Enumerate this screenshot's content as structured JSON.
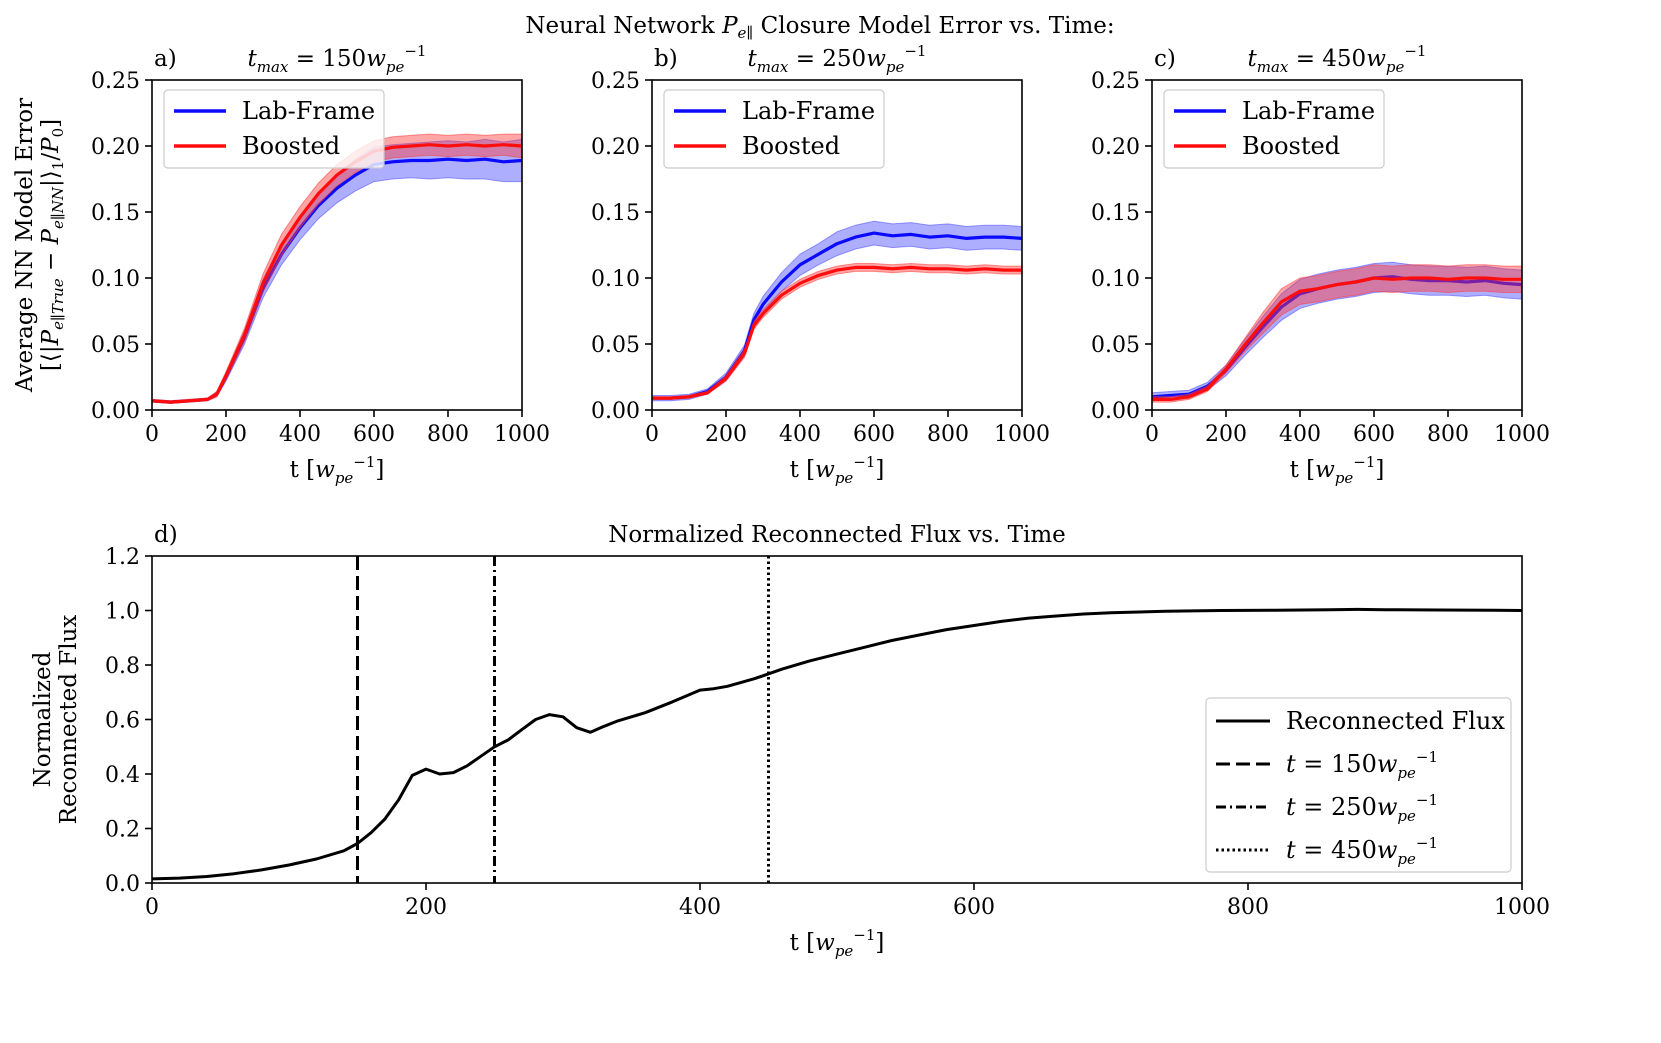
{
  "figure_title": "Neural Network P_e∥ Closure Model Error vs. Time:",
  "figure_title_parts": {
    "before": "Neural Network ",
    "symbol": "P",
    "symbol_sub": "e∥",
    "after": " Closure Model Error vs. Time:"
  },
  "shared_y_label": {
    "line1": "Average NN Model Error",
    "line2": "[⟨|P_e∥True − P_e∥NN|⟩₁/P₀]",
    "line2_parts": {
      "open": "[⟨|",
      "p1": "P",
      "p1_sub": "e∥True",
      "minus": " − ",
      "p2": "P",
      "p2_sub": "e∥NN",
      "mid": "|⟩",
      "mid_sub": "1",
      "div": "/",
      "p0": "P",
      "p0_sub": "0",
      "close": "]"
    }
  },
  "colors": {
    "lab_frame": "#0a0aff",
    "lab_frame_band": "#4b4bff",
    "boosted": "#ff0d0d",
    "boosted_band": "#ff3a3a",
    "flux": "#000000"
  },
  "chart_data": [
    {
      "panel_label": "a)",
      "type": "line",
      "title": "t_max = 150w_pe^-1",
      "title_parts": {
        "var": "t",
        "sub": "max",
        "eq": " = 150",
        "w": "w",
        "w_sub": "pe",
        "w_sup": "−1"
      },
      "xlabel": "t [w_pe^-1]",
      "xlabel_parts": {
        "pre": "t [",
        "w": "w",
        "w_sub": "pe",
        "w_sup": "−1",
        "post": "]"
      },
      "xlim": [
        0,
        1000
      ],
      "ylim": [
        0,
        0.25
      ],
      "xticks": [
        "0",
        "200",
        "400",
        "600",
        "800",
        "1000"
      ],
      "yticks": [
        "0.00",
        "0.05",
        "0.10",
        "0.15",
        "0.20",
        "0.25"
      ],
      "legend": {
        "placement": "top-left",
        "entries": [
          "Lab-Frame",
          "Boosted"
        ]
      },
      "series": [
        {
          "name": "Lab-Frame",
          "x": [
            0,
            50,
            100,
            150,
            175,
            200,
            250,
            300,
            350,
            400,
            450,
            500,
            550,
            600,
            650,
            700,
            750,
            800,
            850,
            900,
            950,
            1000
          ],
          "y": [
            0.007,
            0.006,
            0.007,
            0.008,
            0.012,
            0.025,
            0.055,
            0.092,
            0.118,
            0.138,
            0.155,
            0.168,
            0.178,
            0.186,
            0.188,
            0.189,
            0.189,
            0.19,
            0.189,
            0.19,
            0.188,
            0.189
          ],
          "band": [
            0.001,
            0.001,
            0.001,
            0.001,
            0.002,
            0.003,
            0.005,
            0.007,
            0.008,
            0.009,
            0.01,
            0.011,
            0.012,
            0.013,
            0.013,
            0.013,
            0.014,
            0.014,
            0.014,
            0.015,
            0.015,
            0.016
          ]
        },
        {
          "name": "Boosted",
          "x": [
            0,
            50,
            100,
            150,
            175,
            200,
            250,
            300,
            350,
            400,
            450,
            500,
            550,
            600,
            650,
            700,
            750,
            800,
            850,
            900,
            950,
            1000
          ],
          "y": [
            0.007,
            0.006,
            0.007,
            0.008,
            0.012,
            0.026,
            0.057,
            0.096,
            0.125,
            0.146,
            0.164,
            0.178,
            0.188,
            0.196,
            0.199,
            0.2,
            0.201,
            0.2,
            0.201,
            0.2,
            0.201,
            0.2
          ],
          "band": [
            0.001,
            0.001,
            0.001,
            0.001,
            0.002,
            0.003,
            0.005,
            0.007,
            0.008,
            0.008,
            0.008,
            0.008,
            0.008,
            0.008,
            0.008,
            0.008,
            0.008,
            0.008,
            0.008,
            0.008,
            0.008,
            0.009
          ]
        }
      ]
    },
    {
      "panel_label": "b)",
      "type": "line",
      "title": "t_max = 250w_pe^-1",
      "title_parts": {
        "var": "t",
        "sub": "max",
        "eq": " = 250",
        "w": "w",
        "w_sub": "pe",
        "w_sup": "−1"
      },
      "xlabel": "t [w_pe^-1]",
      "xlabel_parts": {
        "pre": "t [",
        "w": "w",
        "w_sub": "pe",
        "w_sup": "−1",
        "post": "]"
      },
      "xlim": [
        0,
        1000
      ],
      "ylim": [
        0,
        0.25
      ],
      "xticks": [
        "0",
        "200",
        "400",
        "600",
        "800",
        "1000"
      ],
      "yticks": [
        "0.00",
        "0.05",
        "0.10",
        "0.15",
        "0.20",
        "0.25"
      ],
      "legend": {
        "placement": "top-left",
        "entries": [
          "Lab-Frame",
          "Boosted"
        ]
      },
      "series": [
        {
          "name": "Lab-Frame",
          "x": [
            0,
            50,
            100,
            150,
            200,
            250,
            275,
            300,
            350,
            400,
            450,
            500,
            550,
            600,
            650,
            700,
            750,
            800,
            850,
            900,
            950,
            1000
          ],
          "y": [
            0.009,
            0.009,
            0.01,
            0.014,
            0.025,
            0.045,
            0.068,
            0.08,
            0.097,
            0.11,
            0.118,
            0.126,
            0.131,
            0.134,
            0.132,
            0.133,
            0.131,
            0.132,
            0.13,
            0.131,
            0.131,
            0.13
          ],
          "band": [
            0.002,
            0.002,
            0.002,
            0.002,
            0.003,
            0.004,
            0.005,
            0.006,
            0.007,
            0.008,
            0.008,
            0.009,
            0.009,
            0.009,
            0.009,
            0.009,
            0.009,
            0.009,
            0.009,
            0.009,
            0.009,
            0.009
          ]
        },
        {
          "name": "Boosted",
          "x": [
            0,
            50,
            100,
            150,
            200,
            250,
            275,
            300,
            350,
            400,
            450,
            500,
            550,
            600,
            650,
            700,
            750,
            800,
            850,
            900,
            950,
            1000
          ],
          "y": [
            0.009,
            0.009,
            0.01,
            0.013,
            0.024,
            0.043,
            0.064,
            0.073,
            0.087,
            0.096,
            0.102,
            0.106,
            0.108,
            0.108,
            0.107,
            0.108,
            0.107,
            0.107,
            0.106,
            0.107,
            0.106,
            0.106
          ],
          "band": [
            0.001,
            0.001,
            0.001,
            0.001,
            0.002,
            0.003,
            0.003,
            0.003,
            0.003,
            0.003,
            0.003,
            0.003,
            0.003,
            0.003,
            0.003,
            0.003,
            0.003,
            0.003,
            0.003,
            0.003,
            0.003,
            0.003
          ]
        }
      ]
    },
    {
      "panel_label": "c)",
      "type": "line",
      "title": "t_max = 450w_pe^-1",
      "title_parts": {
        "var": "t",
        "sub": "max",
        "eq": " = 450",
        "w": "w",
        "w_sub": "pe",
        "w_sup": "−1"
      },
      "xlabel": "t [w_pe^-1]",
      "xlabel_parts": {
        "pre": "t [",
        "w": "w",
        "w_sub": "pe",
        "w_sup": "−1",
        "post": "]"
      },
      "xlim": [
        0,
        1000
      ],
      "ylim": [
        0,
        0.25
      ],
      "xticks": [
        "0",
        "200",
        "400",
        "600",
        "800",
        "1000"
      ],
      "yticks": [
        "0.00",
        "0.05",
        "0.10",
        "0.15",
        "0.20",
        "0.25"
      ],
      "legend": {
        "placement": "top-left",
        "entries": [
          "Lab-Frame",
          "Boosted"
        ]
      },
      "series": [
        {
          "name": "Lab-Frame",
          "x": [
            0,
            50,
            100,
            150,
            200,
            250,
            300,
            350,
            400,
            450,
            500,
            550,
            600,
            650,
            700,
            750,
            800,
            850,
            900,
            950,
            1000
          ],
          "y": [
            0.01,
            0.011,
            0.012,
            0.018,
            0.03,
            0.047,
            0.063,
            0.078,
            0.088,
            0.092,
            0.095,
            0.097,
            0.1,
            0.101,
            0.099,
            0.098,
            0.098,
            0.097,
            0.098,
            0.096,
            0.095
          ],
          "band": [
            0.003,
            0.003,
            0.003,
            0.003,
            0.004,
            0.006,
            0.008,
            0.01,
            0.011,
            0.011,
            0.011,
            0.011,
            0.011,
            0.011,
            0.011,
            0.011,
            0.011,
            0.011,
            0.011,
            0.011,
            0.011
          ]
        },
        {
          "name": "Boosted",
          "x": [
            0,
            50,
            100,
            150,
            200,
            250,
            300,
            350,
            400,
            450,
            500,
            550,
            600,
            650,
            700,
            750,
            800,
            850,
            900,
            950,
            1000
          ],
          "y": [
            0.008,
            0.008,
            0.01,
            0.016,
            0.031,
            0.049,
            0.066,
            0.082,
            0.09,
            0.092,
            0.095,
            0.097,
            0.1,
            0.099,
            0.1,
            0.1,
            0.099,
            0.1,
            0.1,
            0.099,
            0.099
          ],
          "band": [
            0.002,
            0.002,
            0.002,
            0.002,
            0.003,
            0.005,
            0.008,
            0.01,
            0.01,
            0.01,
            0.01,
            0.01,
            0.01,
            0.01,
            0.01,
            0.01,
            0.01,
            0.01,
            0.01,
            0.01,
            0.01
          ]
        }
      ]
    },
    {
      "panel_label": "d)",
      "type": "line",
      "title": "Normalized Reconnected Flux vs. Time",
      "ylabel": "Normalized Reconnected Flux",
      "ylabel_lines": [
        "Normalized",
        "Reconnected Flux"
      ],
      "xlabel": "t [w_pe^-1]",
      "xlabel_parts": {
        "pre": "t [",
        "w": "w",
        "w_sub": "pe",
        "w_sup": "−1",
        "post": "]"
      },
      "xlim": [
        0,
        1000
      ],
      "ylim": [
        0,
        1.2
      ],
      "xticks": [
        "0",
        "200",
        "400",
        "600",
        "800",
        "1000"
      ],
      "yticks": [
        "0.0",
        "0.2",
        "0.4",
        "0.6",
        "0.8",
        "1.0",
        "1.2"
      ],
      "legend": {
        "placement": "lower-right",
        "entries": [
          {
            "label": "Reconnected Flux",
            "style": "solid"
          },
          {
            "label": "t = 150w_pe^-1",
            "style": "dashed",
            "eq": "t = 150",
            "w": "w",
            "w_sub": "pe",
            "w_sup": "−1"
          },
          {
            "label": "t = 250w_pe^-1",
            "style": "dashdot",
            "eq": "t = 250",
            "w": "w",
            "w_sub": "pe",
            "w_sup": "−1"
          },
          {
            "label": "t = 450w_pe^-1",
            "style": "dotted",
            "eq": "t = 450",
            "w": "w",
            "w_sub": "pe",
            "w_sup": "−1"
          }
        ]
      },
      "vlines": [
        {
          "x": 150,
          "style": "dashed"
        },
        {
          "x": 250,
          "style": "dashdot"
        },
        {
          "x": 450,
          "style": "dotted"
        }
      ],
      "series": [
        {
          "name": "Reconnected Flux",
          "x": [
            0,
            20,
            40,
            60,
            80,
            100,
            120,
            140,
            150,
            160,
            170,
            180,
            190,
            200,
            210,
            220,
            230,
            240,
            250,
            260,
            270,
            280,
            290,
            300,
            310,
            320,
            330,
            340,
            360,
            380,
            400,
            410,
            420,
            440,
            460,
            480,
            500,
            520,
            540,
            560,
            580,
            600,
            620,
            640,
            660,
            680,
            700,
            740,
            780,
            820,
            860,
            880,
            900,
            940,
            980,
            1000
          ],
          "y": [
            0.015,
            0.018,
            0.024,
            0.034,
            0.048,
            0.066,
            0.088,
            0.118,
            0.145,
            0.185,
            0.235,
            0.305,
            0.395,
            0.418,
            0.4,
            0.405,
            0.43,
            0.465,
            0.5,
            0.525,
            0.563,
            0.6,
            0.618,
            0.61,
            0.57,
            0.553,
            0.575,
            0.595,
            0.625,
            0.665,
            0.708,
            0.713,
            0.722,
            0.75,
            0.785,
            0.815,
            0.84,
            0.865,
            0.89,
            0.91,
            0.93,
            0.945,
            0.96,
            0.972,
            0.98,
            0.987,
            0.992,
            0.997,
            1.0,
            1.001,
            1.003,
            1.004,
            1.003,
            1.002,
            1.001,
            1.0
          ]
        }
      ]
    }
  ]
}
